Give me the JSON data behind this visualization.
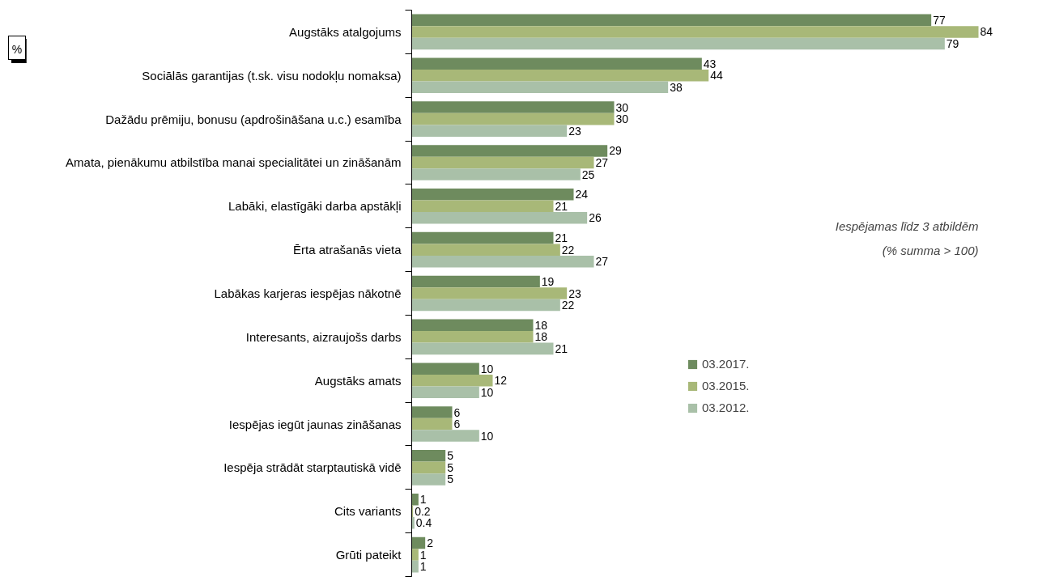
{
  "chart_data": {
    "type": "bar",
    "orientation": "horizontal",
    "categories": [
      "Augstāks atalgojums",
      "Sociālās garantijas (t.sk. visu nodokļu nomaksa)",
      "Dažādu prēmiju, bonusu (apdrošināšana u.c.) esamība",
      "Amata, pienākumu atbilstība manai specialitātei un zināšanām",
      "Labāki, elastīgāki darba apstākļi",
      "Ērta atrašanās vieta",
      "Labākas karjeras iespējas nākotnē",
      "Interesants, aizraujošs darbs",
      "Augstāks amats",
      "Iespējas iegūt jaunas zināšanas",
      "Iespēja strādāt starptautiskā vidē",
      "Cits variants",
      "Grūti pateikt"
    ],
    "series": [
      {
        "name": "03.2017.",
        "color": "#6e8b5e",
        "values": [
          77,
          43,
          30,
          29,
          24,
          21,
          19,
          18,
          10,
          6,
          5,
          1,
          2
        ]
      },
      {
        "name": "03.2015.",
        "color": "#a8b878",
        "values": [
          84,
          44,
          30,
          27,
          21,
          22,
          23,
          18,
          12,
          6,
          5,
          0.2,
          1
        ]
      },
      {
        "name": "03.2012.",
        "color": "#a9c0a8",
        "values": [
          79,
          38,
          23,
          25,
          26,
          27,
          22,
          21,
          10,
          10,
          5,
          0.4,
          1
        ]
      }
    ],
    "tick_labels": "y",
    "data_labels": true,
    "legend": "right",
    "grid": false,
    "annotations": [
      "%",
      "Iespējamas līdz 3 atbildēm",
      "(% summa > 100)"
    ]
  }
}
